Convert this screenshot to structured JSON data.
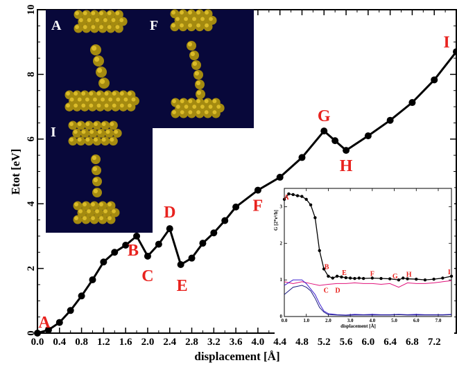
{
  "chart_data": {
    "type": "line",
    "xlabel": "displacement [Å]",
    "ylabel": "Etot [eV]",
    "xlim": [
      0,
      7.6
    ],
    "ylim": [
      0,
      10
    ],
    "x_ticks": [
      "0.0",
      "0.4",
      "0.8",
      "1.2",
      "1.6",
      "2.0",
      "2.4",
      "2.8",
      "3.2",
      "3.6",
      "4.0",
      "4.4",
      "4.8",
      "5.2",
      "5.6",
      "6.0",
      "6.4",
      "6.8",
      "7.2"
    ],
    "y_ticks": [
      "0",
      "2",
      "4",
      "6",
      "8",
      "10"
    ],
    "series": [
      {
        "color": "#000000",
        "x": [
          0.0,
          0.2,
          0.4,
          0.6,
          0.8,
          1.0,
          1.2,
          1.4,
          1.6,
          1.8,
          2.0,
          2.2,
          2.4,
          2.6,
          2.8,
          3.0,
          3.2,
          3.4,
          3.6,
          4.0,
          4.4,
          4.8,
          5.2,
          5.4,
          5.6,
          6.0,
          6.4,
          6.8,
          7.2,
          7.6
        ],
        "y": [
          0.0,
          0.1,
          0.33,
          0.7,
          1.15,
          1.65,
          2.2,
          2.5,
          2.72,
          3.0,
          2.38,
          2.75,
          3.23,
          2.12,
          2.32,
          2.78,
          3.1,
          3.48,
          3.9,
          4.42,
          4.82,
          5.43,
          6.25,
          5.95,
          5.65,
          6.1,
          6.58,
          7.13,
          7.83,
          8.7
        ]
      }
    ],
    "point_labels": [
      {
        "text": "A",
        "x": 0.0,
        "y": 0.0
      },
      {
        "text": "B",
        "x": 1.8,
        "y": 3.0
      },
      {
        "text": "C",
        "x": 2.0,
        "y": 2.38
      },
      {
        "text": "D",
        "x": 2.4,
        "y": 3.23
      },
      {
        "text": "E",
        "x": 2.6,
        "y": 2.12
      },
      {
        "text": "F",
        "x": 4.0,
        "y": 4.42
      },
      {
        "text": "G",
        "x": 5.2,
        "y": 6.25
      },
      {
        "text": "H",
        "x": 5.6,
        "y": 5.65
      },
      {
        "text": "I",
        "x": 7.6,
        "y": 8.7
      }
    ],
    "structure_panels": [
      "A",
      "F",
      "I"
    ],
    "inset": {
      "xlabel": "displacement [Å]",
      "ylabel": "G [2*e²/h]",
      "xlim": [
        0,
        7.6
      ],
      "ylim": [
        0,
        3.5
      ],
      "x_ticks": [
        "0.0",
        "1.0",
        "2.0",
        "3.0",
        "4.0",
        "5.0",
        "6.0",
        "7.0"
      ],
      "y_ticks": [
        "0",
        "1",
        "2",
        "3"
      ],
      "series": [
        {
          "color": "#000000",
          "markers": true,
          "x": [
            0.0,
            0.2,
            0.4,
            0.6,
            0.8,
            1.0,
            1.2,
            1.4,
            1.6,
            1.8,
            2.0,
            2.2,
            2.4,
            2.6,
            2.8,
            3.0,
            3.2,
            3.4,
            3.6,
            4.0,
            4.4,
            4.8,
            5.2,
            5.4,
            5.6,
            6.0,
            6.4,
            6.8,
            7.2,
            7.6
          ],
          "y": [
            3.2,
            3.35,
            3.33,
            3.3,
            3.28,
            3.2,
            3.05,
            2.7,
            1.8,
            1.3,
            1.1,
            1.05,
            1.1,
            1.08,
            1.06,
            1.05,
            1.04,
            1.05,
            1.04,
            1.05,
            1.04,
            1.03,
            1.0,
            1.05,
            1.03,
            1.02,
            1.0,
            1.02,
            1.05,
            1.1
          ]
        },
        {
          "color": "#e0107a",
          "markers": false,
          "x": [
            0.0,
            0.4,
            0.8,
            1.2,
            1.6,
            2.0,
            2.4,
            2.8,
            3.2,
            3.6,
            4.0,
            4.4,
            4.8,
            5.2,
            5.6,
            6.0,
            6.4,
            6.8,
            7.2,
            7.6
          ],
          "y": [
            0.95,
            0.9,
            0.95,
            0.9,
            0.85,
            0.88,
            0.9,
            0.9,
            0.92,
            0.9,
            0.9,
            0.88,
            0.9,
            0.8,
            0.92,
            0.9,
            0.9,
            0.92,
            0.95,
            0.98
          ]
        },
        {
          "color": "#3a1fd0",
          "markers": false,
          "x": [
            0.0,
            0.4,
            0.8,
            1.0,
            1.2,
            1.4,
            1.6,
            1.8,
            2.0,
            2.4,
            2.8,
            3.2,
            3.6,
            4.0,
            4.4,
            4.8,
            5.2,
            5.6,
            6.0,
            6.4,
            6.8,
            7.2,
            7.6
          ],
          "y": [
            0.85,
            1.0,
            1.0,
            0.9,
            0.75,
            0.6,
            0.35,
            0.15,
            0.08,
            0.05,
            0.04,
            0.06,
            0.05,
            0.06,
            0.05,
            0.05,
            0.06,
            0.05,
            0.06,
            0.05,
            0.05,
            0.05,
            0.06
          ]
        },
        {
          "color": "#1a1a80",
          "markers": false,
          "x": [
            0.0,
            0.4,
            0.8,
            1.0,
            1.2,
            1.4,
            1.6,
            1.8,
            2.0,
            2.4,
            2.8,
            3.2,
            3.6,
            4.0,
            4.4,
            4.8,
            5.2,
            5.6,
            6.0,
            6.4,
            6.8,
            7.2,
            7.6
          ],
          "y": [
            0.6,
            0.8,
            0.85,
            0.8,
            0.7,
            0.5,
            0.25,
            0.12,
            0.05,
            0.04,
            0.03,
            0.04,
            0.04,
            0.04,
            0.04,
            0.04,
            0.05,
            0.04,
            0.04,
            0.04,
            0.04,
            0.04,
            0.05
          ]
        }
      ],
      "point_labels": [
        {
          "text": "A",
          "x": 0.0,
          "y": 3.2
        },
        {
          "text": "B",
          "x": 1.8,
          "y": 1.3
        },
        {
          "text": "C",
          "x": 1.9,
          "y": 0.75
        },
        {
          "text": "D",
          "x": 2.3,
          "y": 0.75
        },
        {
          "text": "E",
          "x": 2.6,
          "y": 1.08
        },
        {
          "text": "F",
          "x": 4.0,
          "y": 1.05
        },
        {
          "text": "G",
          "x": 5.1,
          "y": 1.0
        },
        {
          "text": "H",
          "x": 5.6,
          "y": 1.03
        },
        {
          "text": "I",
          "x": 7.5,
          "y": 1.1
        }
      ]
    }
  }
}
